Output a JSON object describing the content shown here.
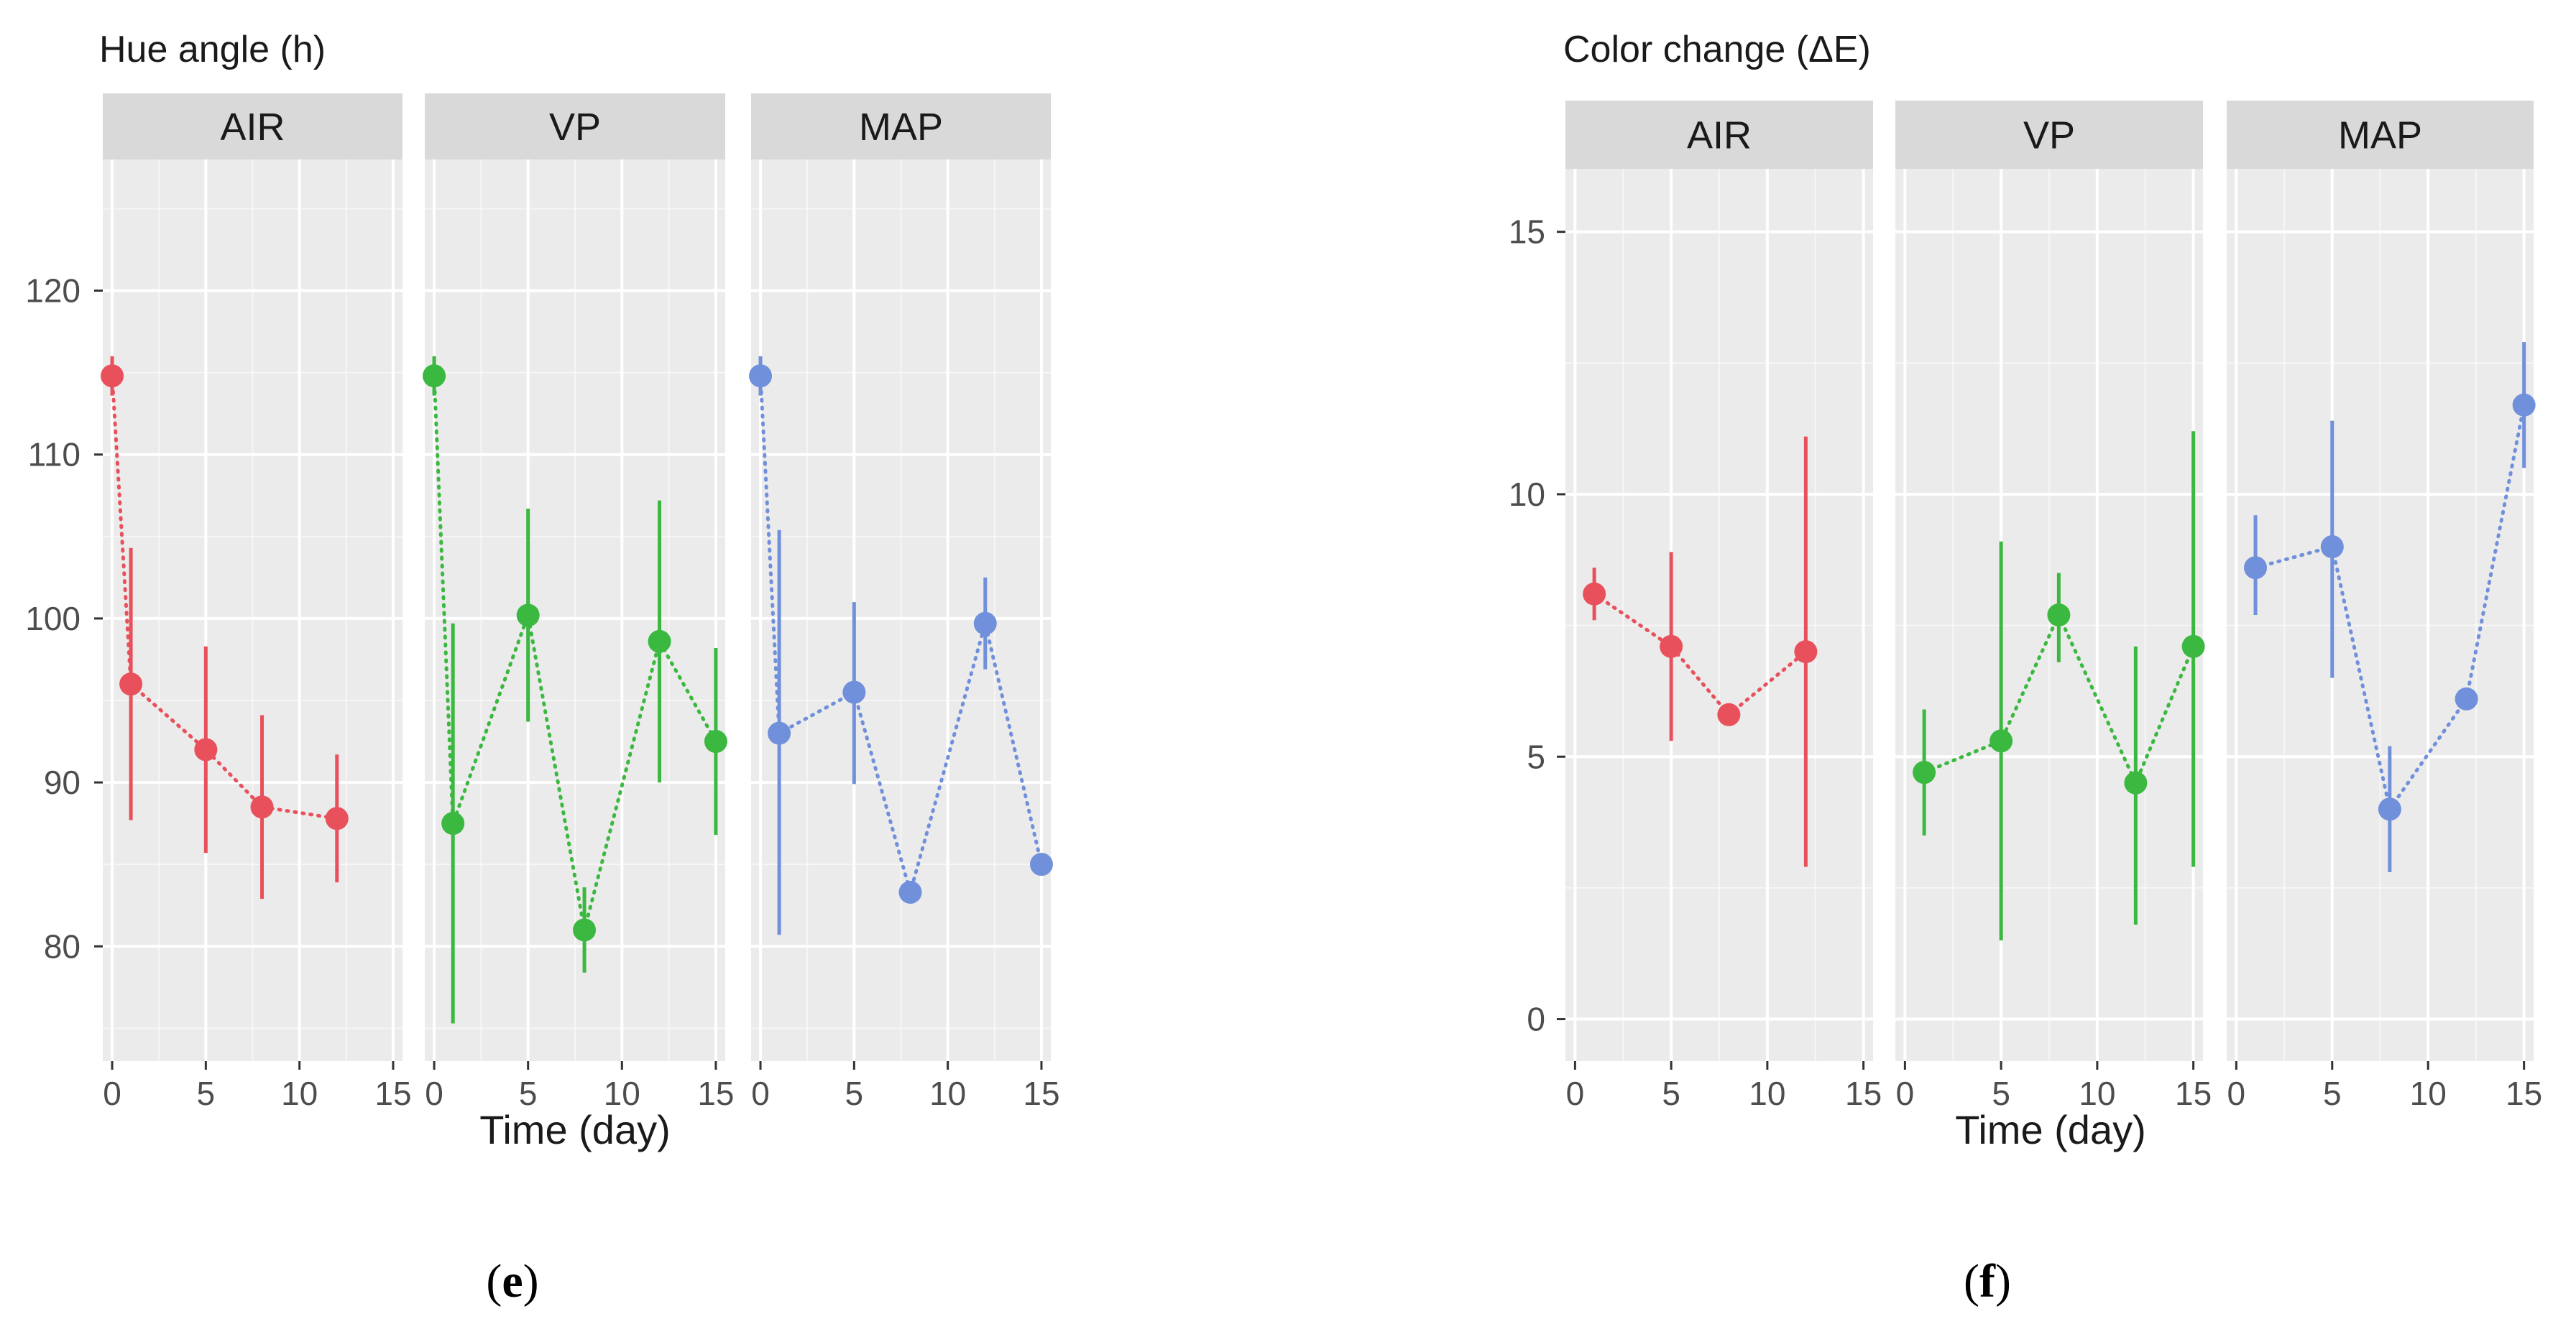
{
  "colors": {
    "AIR": "#e8515c",
    "VP": "#3bb83f",
    "MAP": "#7090db",
    "panel_bg": "#ebebeb",
    "strip_bg": "#d9d9d9",
    "grid": "#ffffff",
    "axis_text": "#4d4d4d",
    "tick": "#333333",
    "title_text": "#1a1a1a"
  },
  "chart_data": [
    {
      "type": "scatter",
      "id": "e",
      "title": "Hue angle (h)",
      "xlabel": "Time (day)",
      "ylabel": "",
      "caption_prefix": "(",
      "caption_letter": "e",
      "caption_suffix": ")",
      "xlim": [
        -0.5,
        15.5
      ],
      "ylim": [
        73,
        128
      ],
      "yticks": [
        80,
        90,
        100,
        110,
        120
      ],
      "yminor": [
        75,
        85,
        95,
        105,
        115,
        125
      ],
      "xticks": [
        0,
        5,
        10,
        15
      ],
      "xminor": [
        2.5,
        7.5,
        12.5
      ],
      "grid": true,
      "connector": "dotted",
      "series": [
        {
          "name": "AIR",
          "x": [
            0,
            1,
            5,
            8,
            12
          ],
          "y": [
            114.8,
            96.0,
            92.0,
            88.5,
            87.8
          ],
          "lo": [
            113.6,
            87.7,
            85.7,
            82.9,
            83.9
          ],
          "hi": [
            116.0,
            104.3,
            98.3,
            94.1,
            91.7
          ]
        },
        {
          "name": "VP",
          "x": [
            0,
            1,
            5,
            8,
            12,
            15
          ],
          "y": [
            114.8,
            87.5,
            100.2,
            81.0,
            98.6,
            92.5
          ],
          "lo": [
            113.6,
            75.3,
            93.7,
            78.4,
            90.0,
            86.8
          ],
          "hi": [
            116.0,
            99.7,
            106.7,
            83.6,
            107.2,
            98.2
          ]
        },
        {
          "name": "MAP",
          "x": [
            0,
            1,
            5,
            8,
            12,
            15
          ],
          "y": [
            114.8,
            93.0,
            95.5,
            83.3,
            99.7,
            85.0
          ],
          "lo": [
            113.6,
            80.7,
            89.9,
            83.3,
            96.9,
            85.0
          ],
          "hi": [
            116.0,
            105.4,
            101.0,
            83.3,
            102.5,
            85.0
          ]
        }
      ]
    },
    {
      "type": "scatter",
      "id": "f",
      "title": "Color change (ΔE)",
      "xlabel": "Time (day)",
      "ylabel": "",
      "caption_prefix": "(",
      "caption_letter": "f",
      "caption_suffix": ")",
      "xlim": [
        -0.5,
        15.5
      ],
      "ylim": [
        -0.8,
        16.2
      ],
      "yticks": [
        0,
        5,
        10,
        15
      ],
      "yminor": [
        2.5,
        7.5,
        12.5
      ],
      "xticks": [
        0,
        5,
        10,
        15
      ],
      "xminor": [
        2.5,
        7.5,
        12.5
      ],
      "grid": true,
      "connector": "dotted",
      "series": [
        {
          "name": "AIR",
          "x": [
            1,
            5,
            8,
            12
          ],
          "y": [
            8.1,
            7.1,
            5.8,
            7.0
          ],
          "lo": [
            7.6,
            5.3,
            5.8,
            2.9
          ],
          "hi": [
            8.6,
            8.9,
            5.8,
            11.1
          ]
        },
        {
          "name": "VP",
          "x": [
            1,
            5,
            8,
            12,
            15
          ],
          "y": [
            4.7,
            5.3,
            7.7,
            4.5,
            7.1
          ],
          "lo": [
            3.5,
            1.5,
            6.8,
            1.8,
            2.9
          ],
          "hi": [
            5.9,
            9.1,
            8.5,
            7.1,
            11.2
          ]
        },
        {
          "name": "MAP",
          "x": [
            1,
            5,
            8,
            12,
            15
          ],
          "y": [
            8.6,
            9.0,
            4.0,
            6.1,
            11.7
          ],
          "lo": [
            7.7,
            6.5,
            2.8,
            6.1,
            10.5
          ],
          "hi": [
            9.6,
            11.4,
            5.2,
            6.1,
            12.9
          ]
        }
      ]
    }
  ]
}
